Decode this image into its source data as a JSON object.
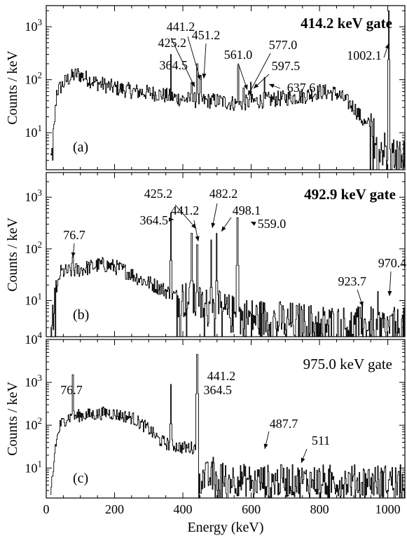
{
  "chart_data": [
    {
      "type": "line",
      "panel_label": "(a)",
      "gate_label": "414.2 keV gate",
      "gate_bold": true,
      "ylabel": "Counts / keV",
      "ylog": true,
      "xlim": [
        0,
        1050
      ],
      "ylim": [
        2,
        2500
      ],
      "ytick_labels": [
        "10^1",
        "10^2",
        "10^3"
      ],
      "peaks": [
        {
          "energy": 364.5,
          "label": "364.5",
          "height": 300
        },
        {
          "energy": 425.2,
          "label": "425.2",
          "height": 90
        },
        {
          "energy": 441.2,
          "label": "441.2",
          "height": 200
        },
        {
          "energy": 451.2,
          "label": "451.2",
          "height": 120
        },
        {
          "energy": 561.0,
          "label": "561.0",
          "height": 190
        },
        {
          "energy": 577.0,
          "label": "577.0",
          "height": 70
        },
        {
          "energy": 597.5,
          "label": "597.5",
          "height": 90
        },
        {
          "energy": 637.6,
          "label": "637.6",
          "height": 110
        },
        {
          "energy": 1002.1,
          "label": "1002.1",
          "height": 2000
        }
      ],
      "continuum": [
        [
          15,
          3
        ],
        [
          30,
          60
        ],
        [
          60,
          100
        ],
        [
          90,
          130
        ],
        [
          140,
          90
        ],
        [
          200,
          70
        ],
        [
          260,
          60
        ],
        [
          320,
          55
        ],
        [
          380,
          45
        ],
        [
          450,
          40
        ],
        [
          500,
          40
        ],
        [
          560,
          35
        ],
        [
          620,
          40
        ],
        [
          700,
          45
        ],
        [
          760,
          50
        ],
        [
          800,
          60
        ],
        [
          850,
          55
        ],
        [
          900,
          30
        ],
        [
          960,
          8
        ],
        [
          1000,
          4
        ],
        [
          1050,
          3
        ]
      ]
    },
    {
      "type": "line",
      "panel_label": "(b)",
      "gate_label": "492.9 keV gate",
      "gate_bold": true,
      "ylabel": "Counts / keV",
      "ylog": true,
      "xlim": [
        0,
        1050
      ],
      "ylim": [
        2,
        3000
      ],
      "ytick_labels": [
        "10^1",
        "10^2",
        "10^3"
      ],
      "peaks": [
        {
          "energy": 76.7,
          "label": "76.7",
          "height": 70
        },
        {
          "energy": 364.5,
          "label": "364.5",
          "height": 500
        },
        {
          "energy": 425.2,
          "label": "425.2",
          "height": 200
        },
        {
          "energy": 441.2,
          "label": "441.2",
          "height": 120
        },
        {
          "energy": 482.2,
          "label": "482.2",
          "height": 150
        },
        {
          "energy": 498.1,
          "label": "498.1",
          "height": 200
        },
        {
          "energy": 559.0,
          "label": "559.0",
          "height": 400
        },
        {
          "energy": 923.7,
          "label": "923.7",
          "height": 8
        },
        {
          "energy": 970.4,
          "label": "970.4",
          "height": 15
        }
      ],
      "continuum": [
        [
          15,
          3
        ],
        [
          40,
          35
        ],
        [
          100,
          40
        ],
        [
          160,
          50
        ],
        [
          200,
          45
        ],
        [
          240,
          35
        ],
        [
          280,
          25
        ],
        [
          330,
          18
        ],
        [
          380,
          12
        ],
        [
          430,
          9
        ],
        [
          480,
          7
        ],
        [
          520,
          6
        ],
        [
          560,
          5
        ],
        [
          620,
          4.5
        ],
        [
          700,
          4
        ],
        [
          800,
          3.5
        ],
        [
          900,
          3.2
        ],
        [
          1050,
          3
        ]
      ]
    },
    {
      "type": "line",
      "panel_label": "(c)",
      "gate_label": "975.0 keV gate",
      "gate_bold": false,
      "ylabel": "Counts / keV",
      "xlabel": "Energy (keV)",
      "ylog": true,
      "xlim": [
        0,
        1050
      ],
      "ylim": [
        2,
        10000
      ],
      "ytick_labels": [
        "10^1",
        "10^2",
        "10^3",
        "10^4"
      ],
      "xticks": [
        0,
        200,
        400,
        600,
        800,
        1000
      ],
      "xtick_labels": [
        "0",
        "200",
        "400",
        "600",
        "800",
        "1000"
      ],
      "peaks": [
        {
          "energy": 76.7,
          "label": "76.7",
          "height": 1500
        },
        {
          "energy": 364.5,
          "label": "364.5",
          "height": 900
        },
        {
          "energy": 441.2,
          "label": "441.2",
          "height": 4500
        },
        {
          "energy": 487.7,
          "label": "487.7",
          "height": 18
        },
        {
          "energy": 511,
          "label": "511",
          "height": 12
        }
      ],
      "continuum": [
        [
          15,
          2
        ],
        [
          25,
          30
        ],
        [
          40,
          100
        ],
        [
          60,
          150
        ],
        [
          100,
          170
        ],
        [
          150,
          180
        ],
        [
          175,
          200
        ],
        [
          200,
          180
        ],
        [
          250,
          150
        ],
        [
          300,
          80
        ],
        [
          330,
          45
        ],
        [
          360,
          35
        ],
        [
          400,
          30
        ],
        [
          440,
          30
        ],
        [
          450,
          6
        ],
        [
          500,
          6
        ],
        [
          600,
          5
        ],
        [
          800,
          5
        ],
        [
          1050,
          5
        ]
      ]
    }
  ]
}
